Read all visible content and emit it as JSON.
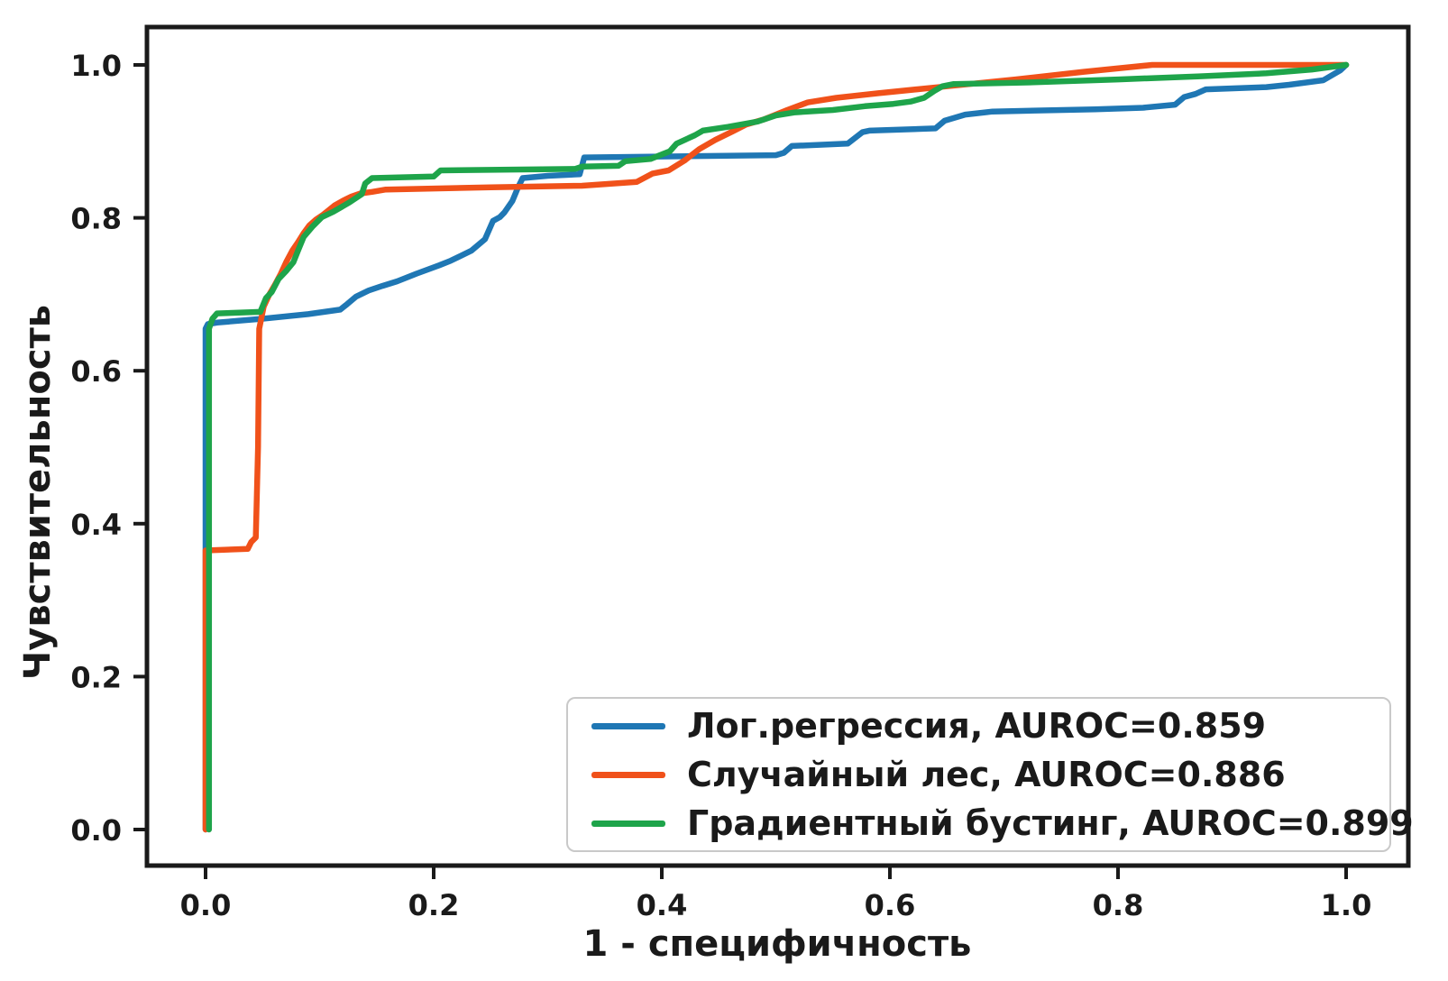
{
  "chart_data": {
    "type": "line",
    "title": "",
    "xlabel": "1 - специфичность",
    "ylabel": "Чувствительность",
    "xlim": [
      0,
      1
    ],
    "ylim": [
      0,
      1
    ],
    "grid": false,
    "legend_position": "lower right",
    "frame_color": "#1a1a1a",
    "x_ticks": [
      {
        "value": 0.0,
        "label": "0.0"
      },
      {
        "value": 0.2,
        "label": "0.2"
      },
      {
        "value": 0.4,
        "label": "0.4"
      },
      {
        "value": 0.6,
        "label": "0.6"
      },
      {
        "value": 0.8,
        "label": "0.8"
      },
      {
        "value": 1.0,
        "label": "1.0"
      }
    ],
    "y_ticks": [
      {
        "value": 0.0,
        "label": "0.0"
      },
      {
        "value": 0.2,
        "label": "0.2"
      },
      {
        "value": 0.4,
        "label": "0.4"
      },
      {
        "value": 0.6,
        "label": "0.6"
      },
      {
        "value": 0.8,
        "label": "0.8"
      },
      {
        "value": 1.0,
        "label": "1.0"
      }
    ],
    "series": [
      {
        "id": "logistic-regression",
        "name": "Лог.регрессия",
        "auroc": 0.859,
        "label": "Лог.регрессия, AUROC=0.859",
        "color": "#1f77b4",
        "points": [
          [
            0,
            0
          ],
          [
            0,
            0.655
          ],
          [
            0.002,
            0.661
          ],
          [
            0.01,
            0.663
          ],
          [
            0.05,
            0.668
          ],
          [
            0.09,
            0.674
          ],
          [
            0.118,
            0.68
          ],
          [
            0.124,
            0.687
          ],
          [
            0.132,
            0.697
          ],
          [
            0.143,
            0.705
          ],
          [
            0.155,
            0.711
          ],
          [
            0.168,
            0.717
          ],
          [
            0.185,
            0.727
          ],
          [
            0.205,
            0.738
          ],
          [
            0.215,
            0.744
          ],
          [
            0.233,
            0.757
          ],
          [
            0.245,
            0.772
          ],
          [
            0.252,
            0.796
          ],
          [
            0.258,
            0.801
          ],
          [
            0.262,
            0.807
          ],
          [
            0.269,
            0.822
          ],
          [
            0.274,
            0.84
          ],
          [
            0.278,
            0.852
          ],
          [
            0.3,
            0.855
          ],
          [
            0.328,
            0.857
          ],
          [
            0.332,
            0.879
          ],
          [
            0.5,
            0.882
          ],
          [
            0.507,
            0.885
          ],
          [
            0.514,
            0.894
          ],
          [
            0.563,
            0.897
          ],
          [
            0.576,
            0.912
          ],
          [
            0.582,
            0.914
          ],
          [
            0.64,
            0.917
          ],
          [
            0.648,
            0.927
          ],
          [
            0.666,
            0.935
          ],
          [
            0.69,
            0.939
          ],
          [
            0.78,
            0.942
          ],
          [
            0.822,
            0.944
          ],
          [
            0.85,
            0.948
          ],
          [
            0.858,
            0.958
          ],
          [
            0.868,
            0.962
          ],
          [
            0.877,
            0.968
          ],
          [
            0.93,
            0.971
          ],
          [
            0.95,
            0.974
          ],
          [
            0.98,
            0.98
          ],
          [
            0.995,
            0.993
          ],
          [
            1,
            1
          ]
        ]
      },
      {
        "id": "random-forest",
        "name": "Случайный лес",
        "auroc": 0.886,
        "label": "Случайный лес, AUROC=0.886",
        "color": "#f0511a",
        "points": [
          [
            0,
            0
          ],
          [
            0,
            0.365
          ],
          [
            0.037,
            0.367
          ],
          [
            0.04,
            0.376
          ],
          [
            0.044,
            0.382
          ],
          [
            0.046,
            0.5
          ],
          [
            0.047,
            0.655
          ],
          [
            0.051,
            0.684
          ],
          [
            0.056,
            0.7
          ],
          [
            0.061,
            0.713
          ],
          [
            0.066,
            0.727
          ],
          [
            0.071,
            0.743
          ],
          [
            0.076,
            0.757
          ],
          [
            0.081,
            0.768
          ],
          [
            0.086,
            0.78
          ],
          [
            0.091,
            0.79
          ],
          [
            0.097,
            0.798
          ],
          [
            0.103,
            0.804
          ],
          [
            0.108,
            0.81
          ],
          [
            0.113,
            0.816
          ],
          [
            0.12,
            0.822
          ],
          [
            0.128,
            0.828
          ],
          [
            0.136,
            0.832
          ],
          [
            0.146,
            0.834
          ],
          [
            0.158,
            0.837
          ],
          [
            0.25,
            0.84
          ],
          [
            0.33,
            0.842
          ],
          [
            0.378,
            0.847
          ],
          [
            0.392,
            0.858
          ],
          [
            0.406,
            0.862
          ],
          [
            0.42,
            0.875
          ],
          [
            0.433,
            0.89
          ],
          [
            0.447,
            0.902
          ],
          [
            0.462,
            0.913
          ],
          [
            0.474,
            0.922
          ],
          [
            0.49,
            0.929
          ],
          [
            0.51,
            0.941
          ],
          [
            0.528,
            0.951
          ],
          [
            0.553,
            0.957
          ],
          [
            0.59,
            0.963
          ],
          [
            0.65,
            0.972
          ],
          [
            0.71,
            0.981
          ],
          [
            0.77,
            0.991
          ],
          [
            0.83,
            1
          ],
          [
            1,
            1
          ]
        ]
      },
      {
        "id": "gradient-boosting",
        "name": "Градиентный бустинг",
        "auroc": 0.899,
        "label": "Градиентный бустинг, AUROC=0.899",
        "color": "#1ea44a",
        "points": [
          [
            0.003,
            0
          ],
          [
            0.003,
            0.655
          ],
          [
            0.006,
            0.668
          ],
          [
            0.01,
            0.675
          ],
          [
            0.048,
            0.677
          ],
          [
            0.053,
            0.695
          ],
          [
            0.058,
            0.703
          ],
          [
            0.064,
            0.72
          ],
          [
            0.071,
            0.731
          ],
          [
            0.077,
            0.742
          ],
          [
            0.081,
            0.757
          ],
          [
            0.086,
            0.775
          ],
          [
            0.094,
            0.789
          ],
          [
            0.102,
            0.801
          ],
          [
            0.112,
            0.808
          ],
          [
            0.126,
            0.82
          ],
          [
            0.137,
            0.831
          ],
          [
            0.14,
            0.845
          ],
          [
            0.146,
            0.852
          ],
          [
            0.2,
            0.854
          ],
          [
            0.206,
            0.862
          ],
          [
            0.324,
            0.864
          ],
          [
            0.33,
            0.867
          ],
          [
            0.362,
            0.868
          ],
          [
            0.368,
            0.874
          ],
          [
            0.39,
            0.877
          ],
          [
            0.407,
            0.887
          ],
          [
            0.413,
            0.897
          ],
          [
            0.429,
            0.908
          ],
          [
            0.436,
            0.914
          ],
          [
            0.458,
            0.919
          ],
          [
            0.484,
            0.926
          ],
          [
            0.5,
            0.934
          ],
          [
            0.517,
            0.938
          ],
          [
            0.55,
            0.941
          ],
          [
            0.578,
            0.946
          ],
          [
            0.603,
            0.949
          ],
          [
            0.618,
            0.952
          ],
          [
            0.63,
            0.957
          ],
          [
            0.639,
            0.966
          ],
          [
            0.646,
            0.972
          ],
          [
            0.656,
            0.975
          ],
          [
            0.72,
            0.977
          ],
          [
            0.8,
            0.981
          ],
          [
            0.87,
            0.985
          ],
          [
            0.93,
            0.989
          ],
          [
            0.97,
            0.994
          ],
          [
            1,
            1
          ]
        ]
      }
    ]
  }
}
